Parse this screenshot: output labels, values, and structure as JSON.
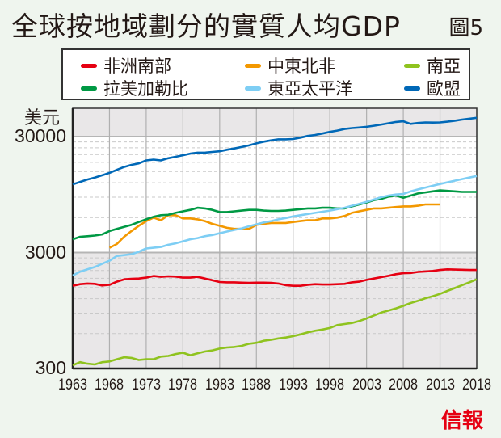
{
  "header": {
    "title": "全球按地域劃分的實質人均GDP",
    "figure_label": "圖5"
  },
  "source_logo": "信報",
  "chart_data": {
    "type": "line",
    "title": "全球按地域劃分的實質人均GDP",
    "ylabel": "美元",
    "xlabel": "",
    "yscale": "log",
    "ylim": [
      300,
      45000
    ],
    "xlim": [
      1963,
      2018
    ],
    "yticks": [
      {
        "value": 300,
        "label": "300"
      },
      {
        "value": 3000,
        "label": "3000"
      },
      {
        "value": 30000,
        "label": "30000"
      }
    ],
    "xticks": [
      "1963",
      "1968",
      "1973",
      "1978",
      "1983",
      "1988",
      "1993",
      "1998",
      "2003",
      "2008",
      "2013",
      "2018"
    ],
    "legend_position": "top",
    "grid": true,
    "series": [
      {
        "name": "非洲南部",
        "color": "#e60012",
        "start": 1963,
        "values": [
          1550,
          1600,
          1620,
          1610,
          1560,
          1580,
          1680,
          1760,
          1780,
          1790,
          1820,
          1880,
          1850,
          1870,
          1860,
          1820,
          1820,
          1850,
          1790,
          1730,
          1670,
          1660,
          1660,
          1650,
          1640,
          1650,
          1650,
          1640,
          1620,
          1570,
          1550,
          1550,
          1580,
          1600,
          1590,
          1590,
          1600,
          1610,
          1660,
          1680,
          1740,
          1790,
          1840,
          1890,
          1950,
          1990,
          2000,
          2040,
          2060,
          2080,
          2120,
          2150,
          2140,
          2130,
          2120,
          2120
        ]
      },
      {
        "name": "中東北非",
        "color": "#f39800",
        "start": 1968,
        "values": [
          3300,
          3550,
          4100,
          4600,
          5100,
          5600,
          6000,
          5700,
          6300,
          6300,
          5900,
          5900,
          5800,
          5600,
          5300,
          5100,
          4900,
          4800,
          4800,
          4800,
          5200,
          5300,
          5400,
          5400,
          5400,
          5500,
          5600,
          5700,
          5700,
          5900,
          5900,
          6000,
          6200,
          6600,
          6800,
          7000,
          7200,
          7200,
          7300,
          7400,
          7500,
          7500,
          7600,
          7800,
          7800,
          7800
        ]
      },
      {
        "name": "南亞",
        "color": "#8fc31f",
        "start": 1963,
        "values": [
          320,
          340,
          330,
          325,
          340,
          345,
          360,
          375,
          370,
          355,
          360,
          360,
          380,
          385,
          400,
          410,
          390,
          405,
          420,
          430,
          445,
          455,
          460,
          470,
          490,
          500,
          520,
          530,
          545,
          555,
          570,
          590,
          615,
          635,
          650,
          670,
          710,
          725,
          740,
          770,
          810,
          860,
          910,
          950,
          990,
          1040,
          1100,
          1150,
          1210,
          1260,
          1320,
          1400,
          1480,
          1570,
          1660,
          1760
        ]
      },
      {
        "name": "拉美加勒比",
        "color": "#009944",
        "start": 1963,
        "values": [
          3900,
          4100,
          4150,
          4200,
          4300,
          4600,
          4800,
          5000,
          5200,
          5500,
          5800,
          6100,
          6300,
          6350,
          6600,
          6800,
          7000,
          7300,
          7200,
          7000,
          6700,
          6700,
          6800,
          6900,
          7000,
          7000,
          6900,
          6850,
          6850,
          6900,
          7000,
          7100,
          7200,
          7200,
          7300,
          7300,
          7200,
          7200,
          7500,
          7800,
          8100,
          8500,
          8700,
          9100,
          9300,
          8900,
          9300,
          9700,
          9900,
          10100,
          10300,
          10200,
          10100,
          10000,
          10000,
          10000
        ]
      },
      {
        "name": "東亞太平洋",
        "color": "#7ecef4",
        "start": 1963,
        "values": [
          1900,
          2050,
          2150,
          2250,
          2400,
          2550,
          2800,
          2850,
          2900,
          3050,
          3250,
          3300,
          3350,
          3500,
          3600,
          3750,
          3900,
          4000,
          4150,
          4250,
          4400,
          4550,
          4700,
          4850,
          5050,
          5250,
          5450,
          5600,
          5800,
          5950,
          6150,
          6300,
          6450,
          6600,
          6750,
          6900,
          7100,
          7300,
          7600,
          7900,
          8200,
          8600,
          9000,
          9300,
          9500,
          9600,
          10100,
          10500,
          10900,
          11300,
          11700,
          12100,
          12500,
          12900,
          13300,
          13700
        ]
      },
      {
        "name": "歐盟",
        "color": "#0068b7",
        "start": 1963,
        "values": [
          11600,
          12200,
          12800,
          13300,
          13900,
          14600,
          15500,
          16400,
          17100,
          17600,
          18700,
          19000,
          18700,
          19500,
          20100,
          20700,
          21400,
          21800,
          21800,
          22100,
          22400,
          23100,
          23700,
          24400,
          25200,
          26200,
          27100,
          27800,
          28400,
          28400,
          28600,
          29400,
          30400,
          31000,
          31900,
          32900,
          33800,
          34900,
          35500,
          35900,
          36400,
          37200,
          38100,
          39100,
          40100,
          40600,
          38600,
          39300,
          39700,
          39600,
          39700,
          40300,
          41100,
          42000,
          42800,
          43500
        ]
      }
    ]
  }
}
